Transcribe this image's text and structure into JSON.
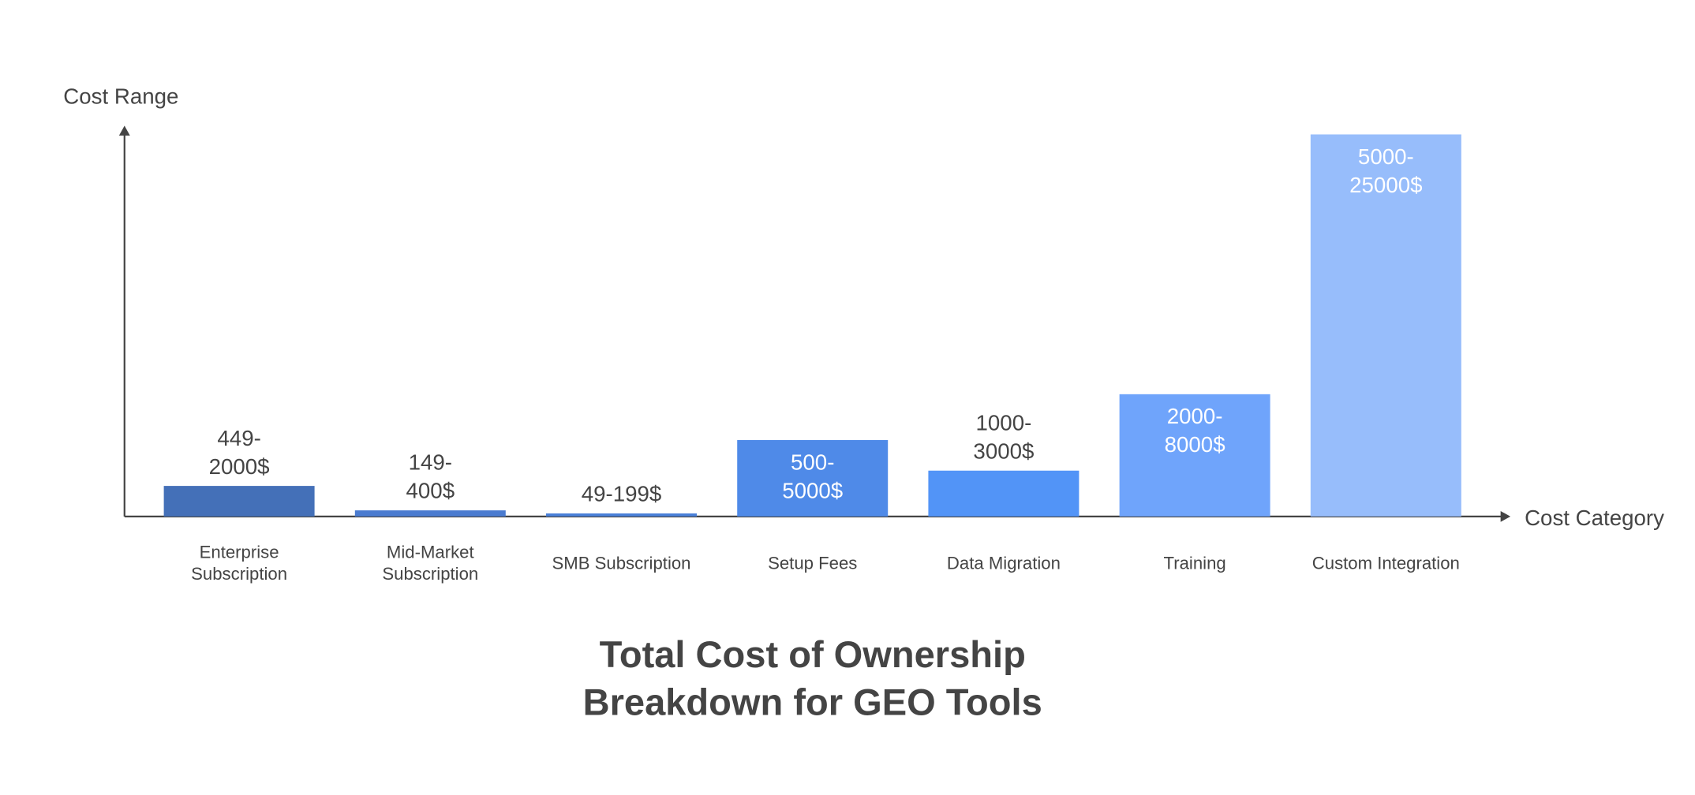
{
  "chart_data": {
    "type": "bar",
    "title": "Total Cost of Ownership Breakdown for GEO Tools",
    "y_label": "Cost Range",
    "x_label": "Cost Category",
    "categories": [
      "Enterprise Subscription",
      "Mid-Market Subscription",
      "SMB Subscription",
      "Setup Fees",
      "Data Migration",
      "Training",
      "Custom Integration"
    ],
    "values": [
      2000,
      400,
      199,
      5000,
      3000,
      8000,
      25000
    ],
    "value_labels": [
      "449-2000$",
      "149-400$",
      "49-199$",
      "500-5000$",
      "1000-3000$",
      "2000-8000$",
      "5000-25000$"
    ],
    "colors": [
      "#4470b8",
      "#4a7bd0",
      "#4a80d8",
      "#4f8ae8",
      "#5294f7",
      "#6fa4fb",
      "#97bdfb"
    ],
    "ylim": [
      0,
      25000
    ]
  }
}
